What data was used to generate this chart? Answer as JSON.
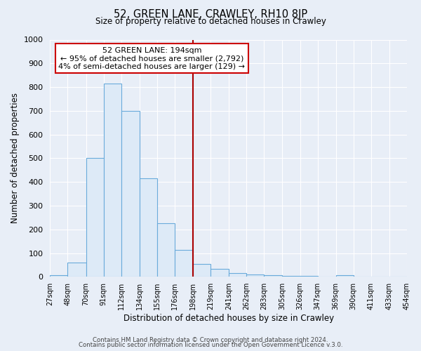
{
  "title": "52, GREEN LANE, CRAWLEY, RH10 8JP",
  "subtitle": "Size of property relative to detached houses in Crawley",
  "xlabel": "Distribution of detached houses by size in Crawley",
  "ylabel": "Number of detached properties",
  "bin_edges": [
    27,
    48,
    70,
    91,
    112,
    134,
    155,
    176,
    198,
    219,
    241,
    262,
    283,
    305,
    326,
    347,
    369,
    390,
    411,
    433,
    454
  ],
  "bin_counts": [
    8,
    60,
    500,
    815,
    700,
    415,
    225,
    115,
    55,
    35,
    15,
    10,
    8,
    5,
    3,
    0,
    8,
    0,
    0,
    0
  ],
  "bar_facecolor": "#ddeaf7",
  "bar_edgecolor": "#6aabdb",
  "vline_x": 198,
  "vline_color": "#aa0000",
  "ylim": [
    0,
    1000
  ],
  "annotation_text": "52 GREEN LANE: 194sqm\n← 95% of detached houses are smaller (2,792)\n4% of semi-detached houses are larger (129) →",
  "annotation_box_edgecolor": "#cc0000",
  "annotation_box_facecolor": "#ffffff",
  "footer1": "Contains HM Land Registry data © Crown copyright and database right 2024.",
  "footer2": "Contains public sector information licensed under the Open Government Licence v.3.0.",
  "background_color": "#e8eef7",
  "plot_bg_color": "#e8eef7",
  "grid_color": "#ffffff",
  "tick_labels": [
    "27sqm",
    "48sqm",
    "70sqm",
    "91sqm",
    "112sqm",
    "134sqm",
    "155sqm",
    "176sqm",
    "198sqm",
    "219sqm",
    "241sqm",
    "262sqm",
    "283sqm",
    "305sqm",
    "326sqm",
    "347sqm",
    "369sqm",
    "390sqm",
    "411sqm",
    "433sqm",
    "454sqm"
  ]
}
